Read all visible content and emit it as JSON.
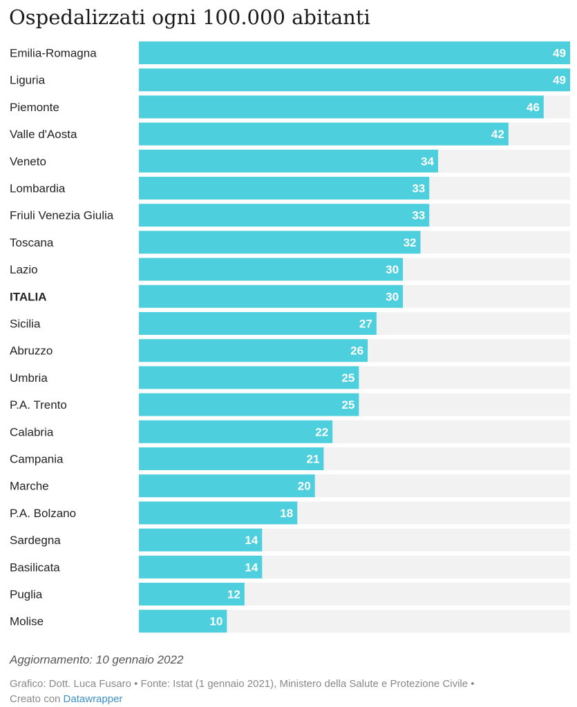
{
  "header": {
    "title": "Ospedalizzati ogni 100.000 abitanti"
  },
  "chart_data": {
    "type": "bar",
    "orientation": "horizontal",
    "title": "Ospedalizzati ogni 100.000 abitanti",
    "xlim": [
      0,
      49
    ],
    "categories": [
      "Emilia-Romagna",
      "Liguria",
      "Piemonte",
      "Valle d'Aosta",
      "Veneto",
      "Lombardia",
      "Friuli Venezia Giulia",
      "Toscana",
      "Lazio",
      "ITALIA",
      "Sicilia",
      "Abruzzo",
      "Umbria",
      "P.A. Trento",
      "Calabria",
      "Campania",
      "Marche",
      "P.A. Bolzano",
      "Sardegna",
      "Basilicata",
      "Puglia",
      "Molise"
    ],
    "values": [
      49,
      49,
      46,
      42,
      34,
      33,
      33,
      32,
      30,
      30,
      27,
      26,
      25,
      25,
      22,
      21,
      20,
      18,
      14,
      14,
      12,
      10
    ],
    "highlight_category": "ITALIA",
    "colors": {
      "bar": "#4ecfdd",
      "track": "#f2f2f2",
      "value_label": "#ffffff"
    }
  },
  "footer": {
    "update": "Aggiornamento: 10 gennaio 2022",
    "credits": "Grafico: Dott. Luca Fusaro • Fonte: Istat (1 gennaio 2021), Ministero della Salute e Protezione Civile •",
    "created_prefix": "Creato con",
    "created_link": "Datawrapper"
  }
}
